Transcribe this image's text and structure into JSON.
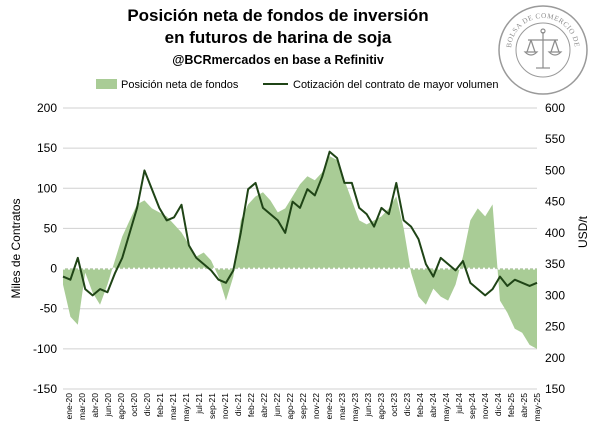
{
  "header": {
    "title_line1": "Posición neta de fondos de inversión",
    "title_line2": "en futuros de harina de soja",
    "subtitle": "@BCRmercados en base a Refinitiv"
  },
  "logo": {
    "text": "BOLSA DE COMERCIO DE ROSARIO"
  },
  "colors": {
    "area": "#a9cc96",
    "line": "#1f4416",
    "grid": "#d0d0d0"
  },
  "chart_data": {
    "type": "area",
    "legend_position": "top",
    "legend": [
      "Posición neta de fondos",
      "Cotización del contrato de mayor volumen"
    ],
    "ylabel_left": "Miles de Contratos",
    "ylabel_right": "USD/t",
    "ylim_left": [
      -150,
      200
    ],
    "ylim_right": [
      150,
      600
    ],
    "yticks_left": [
      -150,
      -100,
      -50,
      0,
      50,
      100,
      150,
      200
    ],
    "yticks_right": [
      150,
      200,
      250,
      300,
      350,
      400,
      450,
      500,
      550,
      600
    ],
    "grid": "horizontal",
    "x_ticks": [
      "ene-20",
      "mar-20",
      "abr-20",
      "jun-20",
      "ago-20",
      "oct-20",
      "dic-20",
      "feb-21",
      "mar-21",
      "may-21",
      "jul-21",
      "sep-21",
      "nov-21",
      "dic-21",
      "feb-22",
      "abr-22",
      "jun-22",
      "ago-22",
      "sep-22",
      "nov-22",
      "ene-23",
      "mar-23",
      "may-23",
      "jun-23",
      "ago-23",
      "oct-23",
      "dic-23",
      "feb-24",
      "abr-24",
      "may-24",
      "jul-24",
      "sep-24",
      "nov-24",
      "dic-24",
      "feb-25",
      "abr-25",
      "may-25"
    ],
    "x_range": [
      "2020-01",
      "2025-05"
    ],
    "series": [
      {
        "name": "Posición neta de fondos",
        "type": "area",
        "axis": "left",
        "x": [
          "2020-01",
          "2020-02",
          "2020-03",
          "2020-04",
          "2020-05",
          "2020-06",
          "2020-07",
          "2020-08",
          "2020-09",
          "2020-10",
          "2020-11",
          "2020-12",
          "2021-01",
          "2021-02",
          "2021-03",
          "2021-04",
          "2021-05",
          "2021-06",
          "2021-07",
          "2021-08",
          "2021-09",
          "2021-10",
          "2021-11",
          "2021-12",
          "2022-01",
          "2022-02",
          "2022-03",
          "2022-04",
          "2022-05",
          "2022-06",
          "2022-07",
          "2022-08",
          "2022-09",
          "2022-10",
          "2022-11",
          "2022-12",
          "2023-01",
          "2023-02",
          "2023-03",
          "2023-04",
          "2023-05",
          "2023-06",
          "2023-07",
          "2023-08",
          "2023-09",
          "2023-10",
          "2023-11",
          "2023-12",
          "2024-01",
          "2024-02",
          "2024-03",
          "2024-04",
          "2024-05",
          "2024-06",
          "2024-07",
          "2024-08",
          "2024-09",
          "2024-10",
          "2024-11",
          "2024-12",
          "2025-01",
          "2025-02",
          "2025-03",
          "2025-04",
          "2025-05"
        ],
        "values": [
          -20,
          -60,
          -70,
          -5,
          -30,
          -45,
          -20,
          10,
          40,
          60,
          80,
          85,
          75,
          70,
          65,
          55,
          45,
          30,
          15,
          20,
          10,
          -10,
          -40,
          -10,
          60,
          80,
          90,
          95,
          85,
          70,
          75,
          90,
          105,
          115,
          110,
          120,
          140,
          135,
          110,
          85,
          60,
          55,
          60,
          65,
          75,
          90,
          50,
          -5,
          -35,
          -45,
          -25,
          -35,
          -40,
          -20,
          15,
          60,
          75,
          65,
          80,
          -40,
          -55,
          -75,
          -80,
          -95,
          -100
        ]
      },
      {
        "name": "Cotización del contrato de mayor volumen",
        "type": "line",
        "axis": "right",
        "x": [
          "2020-01",
          "2020-02",
          "2020-03",
          "2020-04",
          "2020-05",
          "2020-06",
          "2020-07",
          "2020-08",
          "2020-09",
          "2020-10",
          "2020-11",
          "2020-12",
          "2021-01",
          "2021-02",
          "2021-03",
          "2021-04",
          "2021-05",
          "2021-06",
          "2021-07",
          "2021-08",
          "2021-09",
          "2021-10",
          "2021-11",
          "2021-12",
          "2022-01",
          "2022-02",
          "2022-03",
          "2022-04",
          "2022-05",
          "2022-06",
          "2022-07",
          "2022-08",
          "2022-09",
          "2022-10",
          "2022-11",
          "2022-12",
          "2023-01",
          "2023-02",
          "2023-03",
          "2023-04",
          "2023-05",
          "2023-06",
          "2023-07",
          "2023-08",
          "2023-09",
          "2023-10",
          "2023-11",
          "2023-12",
          "2024-01",
          "2024-02",
          "2024-03",
          "2024-04",
          "2024-05",
          "2024-06",
          "2024-07",
          "2024-08",
          "2024-09",
          "2024-10",
          "2024-11",
          "2024-12",
          "2025-01",
          "2025-02",
          "2025-03",
          "2025-04",
          "2025-05"
        ],
        "values": [
          330,
          325,
          360,
          310,
          300,
          310,
          305,
          335,
          360,
          400,
          440,
          500,
          470,
          440,
          420,
          425,
          445,
          380,
          360,
          350,
          340,
          325,
          320,
          340,
          400,
          470,
          480,
          440,
          430,
          420,
          400,
          450,
          440,
          470,
          460,
          490,
          530,
          520,
          480,
          480,
          440,
          430,
          410,
          440,
          430,
          480,
          420,
          410,
          390,
          350,
          330,
          360,
          350,
          340,
          355,
          320,
          310,
          300,
          310,
          330,
          315,
          325,
          320,
          315,
          320
        ]
      }
    ]
  }
}
